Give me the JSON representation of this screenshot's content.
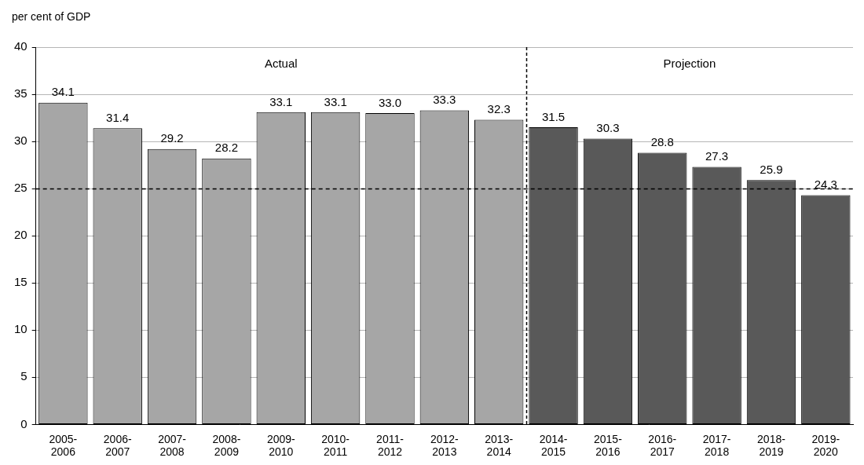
{
  "chart_data": {
    "type": "bar",
    "ylabel": "per cent of GDP",
    "categories": [
      "2005-2006",
      "2006-2007",
      "2007-2008",
      "2008-2009",
      "2009-2010",
      "2010-2011",
      "2011-2012",
      "2012-2013",
      "2013-2014",
      "2014-2015",
      "2015-2016",
      "2016-2017",
      "2017-2018",
      "2018-2019",
      "2019-2020"
    ],
    "series": [
      {
        "name": "Actual",
        "color": "#a6a6a6",
        "values": [
          34.1,
          31.4,
          29.2,
          28.2,
          33.1,
          33.1,
          33.0,
          33.3,
          32.3,
          null,
          null,
          null,
          null,
          null,
          null
        ],
        "value_labels": [
          "34.1",
          "31.4",
          "29.2",
          "28.2",
          "33.1",
          "33.1",
          "33.0",
          "33.3",
          "32.3",
          null,
          null,
          null,
          null,
          null,
          null
        ]
      },
      {
        "name": "Projection",
        "color": "#595959",
        "values": [
          null,
          null,
          null,
          null,
          null,
          null,
          null,
          null,
          null,
          31.5,
          30.3,
          28.8,
          27.3,
          25.9,
          24.3
        ],
        "value_labels": [
          null,
          null,
          null,
          null,
          null,
          null,
          null,
          null,
          null,
          "31.5",
          "30.3",
          "28.8",
          "27.3",
          "25.9",
          "24.3"
        ]
      }
    ],
    "ylim": [
      0,
      40
    ],
    "yticks": [
      0,
      5,
      10,
      15,
      20,
      25,
      30,
      35,
      40
    ],
    "grid": true,
    "data_labels": true,
    "reference_y": 25
  }
}
